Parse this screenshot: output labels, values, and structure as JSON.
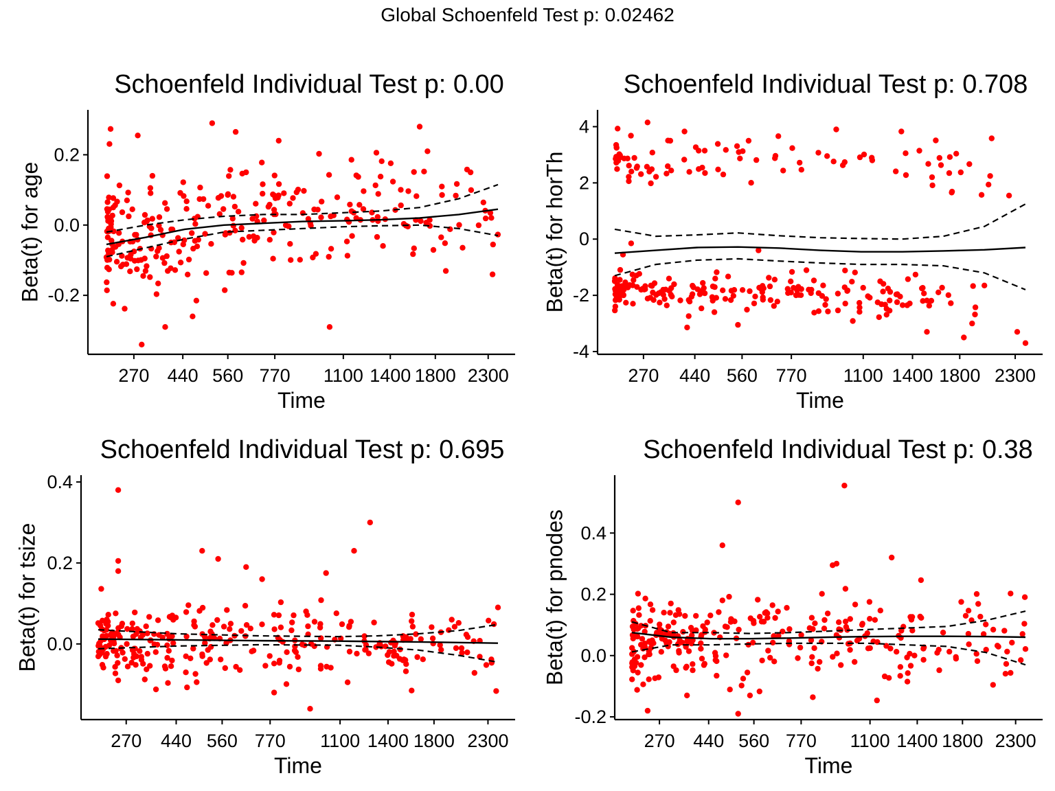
{
  "global_title": "Global Schoenfeld Test p: 0.02462",
  "colors": {
    "points": "#ff0000",
    "fit": "#000000",
    "band": "#000000",
    "axis": "#000000"
  },
  "chart_data": [
    {
      "type": "scatter",
      "title": "Schoenfeld Individual Test p: 0.00",
      "xlabel": "Time",
      "ylabel": "Beta(t) for age",
      "x_ticks": [
        "270",
        "440",
        "560",
        "770",
        "1100",
        "1400",
        "1800",
        "2300"
      ],
      "y_ticks": [
        "-0.2",
        "0.0",
        "0.2"
      ],
      "ylim": [
        -0.36,
        0.32
      ],
      "grid": false,
      "fit": [
        [
          0,
          -0.055
        ],
        [
          0.1,
          -0.035
        ],
        [
          0.2,
          -0.012
        ],
        [
          0.3,
          0.0
        ],
        [
          0.4,
          0.005
        ],
        [
          0.5,
          0.01
        ],
        [
          0.6,
          0.012
        ],
        [
          0.7,
          0.015
        ],
        [
          0.8,
          0.02
        ],
        [
          0.9,
          0.03
        ],
        [
          1,
          0.045
        ]
      ],
      "fit_upper": [
        [
          0,
          -0.02
        ],
        [
          0.1,
          0.0
        ],
        [
          0.2,
          0.015
        ],
        [
          0.3,
          0.025
        ],
        [
          0.4,
          0.03
        ],
        [
          0.5,
          0.03
        ],
        [
          0.6,
          0.035
        ],
        [
          0.7,
          0.04
        ],
        [
          0.8,
          0.05
        ],
        [
          0.9,
          0.075
        ],
        [
          1,
          0.115
        ]
      ],
      "fit_lower": [
        [
          0,
          -0.09
        ],
        [
          0.1,
          -0.065
        ],
        [
          0.2,
          -0.04
        ],
        [
          0.3,
          -0.02
        ],
        [
          0.4,
          -0.015
        ],
        [
          0.5,
          -0.01
        ],
        [
          0.6,
          -0.005
        ],
        [
          0.7,
          -0.002
        ],
        [
          0.8,
          0.0
        ],
        [
          0.9,
          -0.01
        ],
        [
          1,
          -0.03
        ]
      ],
      "points": {
        "seed": 11,
        "n": 290,
        "groups": [
          {
            "share": 1.0,
            "center": [
              [
                0,
                -0.03
              ],
              [
                0.3,
                0.01
              ],
              [
                0.6,
                0.02
              ],
              [
                1,
                0.03
              ]
            ],
            "spread": 0.085
          }
        ],
        "outliers": [
          [
            0.09,
            -0.34
          ],
          [
            0.08,
            0.255
          ],
          [
            0.27,
            0.29
          ],
          [
            0.33,
            0.265
          ],
          [
            0.44,
            0.24
          ],
          [
            0.8,
            0.28
          ],
          [
            0.82,
            0.21
          ],
          [
            0.93,
            0.15
          ],
          [
            0.57,
            -0.29
          ],
          [
            0.15,
            -0.29
          ],
          [
            0.22,
            -0.26
          ]
        ]
      }
    },
    {
      "type": "scatter",
      "title": "Schoenfeld Individual Test p: 0.708",
      "xlabel": "Time",
      "ylabel": "Beta(t) for horTh",
      "x_ticks": [
        "270",
        "440",
        "560",
        "770",
        "1100",
        "1400",
        "1800",
        "2300"
      ],
      "y_ticks": [
        "-4",
        "-2",
        "0",
        "2",
        "4"
      ],
      "ylim": [
        -4.0,
        4.5
      ],
      "grid": false,
      "fit": [
        [
          0,
          -0.5
        ],
        [
          0.1,
          -0.4
        ],
        [
          0.2,
          -0.3
        ],
        [
          0.3,
          -0.28
        ],
        [
          0.4,
          -0.32
        ],
        [
          0.5,
          -0.4
        ],
        [
          0.6,
          -0.45
        ],
        [
          0.7,
          -0.45
        ],
        [
          0.8,
          -0.42
        ],
        [
          0.9,
          -0.38
        ],
        [
          1,
          -0.3
        ]
      ],
      "fit_upper": [
        [
          0,
          0.35
        ],
        [
          0.1,
          0.1
        ],
        [
          0.2,
          0.15
        ],
        [
          0.3,
          0.22
        ],
        [
          0.4,
          0.12
        ],
        [
          0.5,
          0.05
        ],
        [
          0.6,
          0.02
        ],
        [
          0.7,
          0.0
        ],
        [
          0.8,
          0.1
        ],
        [
          0.9,
          0.45
        ],
        [
          1,
          1.25
        ]
      ],
      "fit_lower": [
        [
          0,
          -1.3
        ],
        [
          0.1,
          -0.9
        ],
        [
          0.2,
          -0.75
        ],
        [
          0.3,
          -0.7
        ],
        [
          0.4,
          -0.78
        ],
        [
          0.5,
          -0.85
        ],
        [
          0.6,
          -0.9
        ],
        [
          0.7,
          -0.9
        ],
        [
          0.8,
          -0.95
        ],
        [
          0.9,
          -1.2
        ],
        [
          1,
          -1.8
        ]
      ],
      "points": {
        "seed": 23,
        "n": 290,
        "groups": [
          {
            "share": 0.32,
            "center": [
              [
                0,
                3.0
              ],
              [
                0.5,
                2.9
              ],
              [
                1,
                2.5
              ]
            ],
            "spread": 0.45,
            "xmax": 0.92
          },
          {
            "share": 0.68,
            "center": [
              [
                0,
                -1.8
              ],
              [
                0.5,
                -2.0
              ],
              [
                1,
                -2.2
              ]
            ],
            "spread": 0.35,
            "xmax": 0.88
          }
        ],
        "outliers": [
          [
            0.96,
            1.55
          ],
          [
            0.08,
            4.15
          ],
          [
            0.02,
            -0.55
          ],
          [
            0.04,
            -0.15
          ],
          [
            0.35,
            -0.4
          ],
          [
            0.9,
            -1.65
          ],
          [
            0.98,
            -3.3
          ],
          [
            1.0,
            -3.7
          ],
          [
            0.85,
            -3.5
          ],
          [
            0.76,
            -3.3
          ],
          [
            0.87,
            -3.0
          ],
          [
            0.3,
            -3.05
          ]
        ]
      }
    },
    {
      "type": "scatter",
      "title": "Schoenfeld Individual Test p: 0.695",
      "xlabel": "Time",
      "ylabel": "Beta(t) for tsize",
      "x_ticks": [
        "270",
        "440",
        "560",
        "770",
        "1100",
        "1400",
        "1800",
        "2300"
      ],
      "y_ticks": [
        "0.0",
        "0.2",
        "0.4"
      ],
      "ylim": [
        -0.18,
        0.41
      ],
      "grid": false,
      "fit": [
        [
          0,
          0.012
        ],
        [
          0.2,
          0.01
        ],
        [
          0.4,
          0.008
        ],
        [
          0.6,
          0.007
        ],
        [
          0.8,
          0.005
        ],
        [
          1,
          0.002
        ]
      ],
      "fit_upper": [
        [
          0,
          0.035
        ],
        [
          0.2,
          0.025
        ],
        [
          0.4,
          0.02
        ],
        [
          0.6,
          0.018
        ],
        [
          0.7,
          0.02
        ],
        [
          0.8,
          0.025
        ],
        [
          0.9,
          0.033
        ],
        [
          1,
          0.048
        ]
      ],
      "fit_lower": [
        [
          0,
          -0.012
        ],
        [
          0.2,
          -0.005
        ],
        [
          0.4,
          -0.002
        ],
        [
          0.6,
          -0.003
        ],
        [
          0.7,
          -0.008
        ],
        [
          0.8,
          -0.015
        ],
        [
          0.9,
          -0.028
        ],
        [
          1,
          -0.045
        ]
      ],
      "points": {
        "seed": 37,
        "n": 290,
        "groups": [
          {
            "share": 1.0,
            "center": [
              [
                0,
                0.0
              ],
              [
                0.5,
                0.0
              ],
              [
                1,
                -0.01
              ]
            ],
            "spread": 0.045
          }
        ],
        "outliers": [
          [
            0.05,
            0.38
          ],
          [
            0.05,
            0.205
          ],
          [
            0.05,
            0.18
          ],
          [
            0.3,
            0.21
          ],
          [
            0.26,
            0.23
          ],
          [
            0.41,
            0.16
          ],
          [
            0.64,
            0.23
          ],
          [
            0.68,
            0.3
          ],
          [
            0.57,
            0.175
          ],
          [
            0.37,
            0.19
          ],
          [
            0.44,
            -0.12
          ],
          [
            0.05,
            -0.09
          ],
          [
            0.53,
            -0.16
          ],
          [
            1.0,
            0.09
          ]
        ]
      }
    },
    {
      "type": "scatter",
      "title": "Schoenfeld Individual Test p: 0.38",
      "xlabel": "Time",
      "ylabel": "Beta(t) for pnodes",
      "x_ticks": [
        "270",
        "440",
        "560",
        "770",
        "1100",
        "1400",
        "1800",
        "2300"
      ],
      "y_ticks": [
        "-0.2",
        "0.0",
        "0.2",
        "0.4"
      ],
      "ylim": [
        -0.2,
        0.58
      ],
      "grid": false,
      "fit": [
        [
          0,
          0.075
        ],
        [
          0.1,
          0.06
        ],
        [
          0.2,
          0.055
        ],
        [
          0.3,
          0.055
        ],
        [
          0.4,
          0.057
        ],
        [
          0.5,
          0.06
        ],
        [
          0.6,
          0.062
        ],
        [
          0.7,
          0.063
        ],
        [
          0.8,
          0.063
        ],
        [
          0.9,
          0.062
        ],
        [
          1,
          0.06
        ]
      ],
      "fit_upper": [
        [
          0,
          0.11
        ],
        [
          0.1,
          0.075
        ],
        [
          0.2,
          0.075
        ],
        [
          0.3,
          0.072
        ],
        [
          0.4,
          0.075
        ],
        [
          0.5,
          0.08
        ],
        [
          0.6,
          0.085
        ],
        [
          0.7,
          0.09
        ],
        [
          0.8,
          0.095
        ],
        [
          0.9,
          0.115
        ],
        [
          1,
          0.145
        ]
      ],
      "fit_lower": [
        [
          0,
          0.012
        ],
        [
          0.1,
          0.035
        ],
        [
          0.2,
          0.035
        ],
        [
          0.3,
          0.038
        ],
        [
          0.4,
          0.04
        ],
        [
          0.5,
          0.04
        ],
        [
          0.6,
          0.04
        ],
        [
          0.7,
          0.035
        ],
        [
          0.8,
          0.03
        ],
        [
          0.9,
          0.01
        ],
        [
          1,
          -0.03
        ]
      ],
      "points": {
        "seed": 53,
        "n": 290,
        "groups": [
          {
            "share": 1.0,
            "center": [
              [
                0,
                0.05
              ],
              [
                0.5,
                0.05
              ],
              [
                1,
                0.06
              ]
            ],
            "spread": 0.07
          }
        ],
        "outliers": [
          [
            0.54,
            0.555
          ],
          [
            0.27,
            0.5
          ],
          [
            0.23,
            0.36
          ],
          [
            0.66,
            0.32
          ],
          [
            0.52,
            0.3
          ],
          [
            0.51,
            0.295
          ],
          [
            0.04,
            -0.18
          ],
          [
            0.27,
            -0.19
          ],
          [
            0.3,
            -0.13
          ],
          [
            0.14,
            -0.13
          ],
          [
            0.7,
            -0.085
          ]
        ]
      }
    }
  ]
}
